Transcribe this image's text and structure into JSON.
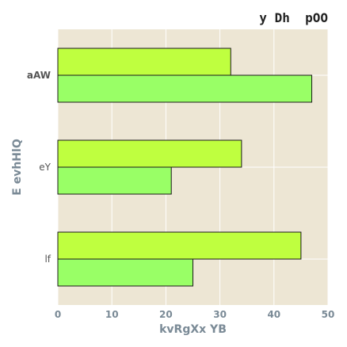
{
  "chart_data": {
    "type": "bar",
    "orientation": "horizontal",
    "title": "y Dh  pOO",
    "xlabel": "kvRgXx YB",
    "ylabel": "E evhHlQ",
    "categories": [
      "aAW",
      "eY",
      "lf"
    ],
    "series": [
      {
        "values": [
          32,
          34,
          45
        ],
        "color": "#bfff3f"
      },
      {
        "values": [
          47,
          21,
          25
        ],
        "color": "#99ff66"
      }
    ],
    "xlim": [
      0,
      50
    ],
    "xticks": [
      0,
      10,
      20,
      30,
      40,
      50
    ],
    "grid": true,
    "background": "#ede6d4"
  }
}
